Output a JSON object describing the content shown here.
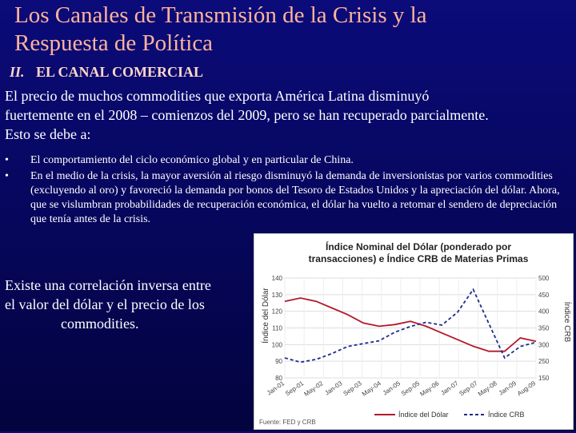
{
  "slide": {
    "title_line1": "Los Canales de Transmisión de la Crisis y la",
    "title_line2": "Respuesta de Política",
    "section_number": "II.",
    "section_title": "EL CANAL COMERCIAL",
    "lead_line1": "El precio de muchos commodities que exporta América Latina disminuyó",
    "lead_line2": "fuertemente en el 2008 – comienzos del 2009, pero se han recuperado parcialmente.",
    "lead_line3": "Esto se debe a:",
    "bullet_char": "•",
    "bullets": [
      "El comportamiento del ciclo económico global y en particular de China.",
      "En el medio de la crisis, la mayor aversión al riesgo disminuyó la demanda de inversionistas por varios commodities (excluyendo al oro) y favoreció la demanda por bonos del Tesoro de Estados Unidos y la apreciación del dólar. Ahora, que se vislumbran probabilidades de recuperación económica, el dólar ha vuelto a retomar el sendero de depreciación que tenía antes de la crisis."
    ],
    "note_line1": "Existe una correlación inversa entre",
    "note_line2": "el valor del dólar y el precio de los",
    "note_line3": "commodities."
  },
  "colors": {
    "title": "#ffb39a",
    "dollar_series": "#b2182b",
    "crb_series": "#1f2a8a"
  },
  "chart_data": {
    "type": "line",
    "title_line1": "Índice Nominal del Dólar (ponderado por",
    "title_line2": "transacciones) e Índice CRB de Materias Primas",
    "ylabel_left": "Índice del Dólar",
    "ylabel_right": "Índice CRB",
    "ylim_left": [
      80,
      140
    ],
    "ylim_right": [
      150,
      500
    ],
    "yticks_left": [
      "140",
      "130",
      "120",
      "110",
      "100",
      "90",
      "80"
    ],
    "yticks_right": [
      "500",
      "450",
      "400",
      "350",
      "300",
      "250",
      "150"
    ],
    "x_ticks": [
      "Jan-01",
      "Sep-01",
      "May-02",
      "Jan-03",
      "Sep-03",
      "May-04",
      "Jan-05",
      "Sep-05",
      "May-06",
      "Jan-07",
      "Sep-07",
      "May-08",
      "Jan-09",
      "Aug-09"
    ],
    "grid": true,
    "source": "Fuente: FED y CRB",
    "series": [
      {
        "name": "Índice del Dólar",
        "axis": "left",
        "values": [
          126,
          128,
          126,
          122,
          118,
          113,
          111,
          112,
          114,
          111,
          107,
          103,
          99,
          96,
          96,
          104,
          102
        ]
      },
      {
        "name": "Índice CRB",
        "axis": "right",
        "values": [
          220,
          205,
          215,
          235,
          260,
          270,
          280,
          310,
          330,
          345,
          335,
          380,
          460,
          340,
          220,
          260,
          275
        ]
      }
    ]
  }
}
